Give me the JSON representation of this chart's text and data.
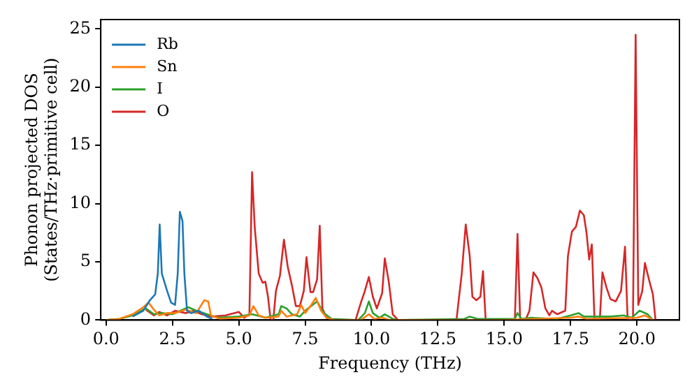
{
  "chart_data": {
    "type": "line",
    "xlabel": "Frequency (THz)",
    "ylabel": "Phonon projected DOS\n(States/THz·primitive cell)",
    "xlim": [
      -0.2,
      21.6
    ],
    "ylim": [
      0,
      25.8
    ],
    "xticks": [
      {
        "value": 0,
        "label": "0.0"
      },
      {
        "value": 2.5,
        "label": "2.5"
      },
      {
        "value": 5,
        "label": "5.0"
      },
      {
        "value": 7.5,
        "label": "7.5"
      },
      {
        "value": 10,
        "label": "10.0"
      },
      {
        "value": 12.5,
        "label": "12.5"
      },
      {
        "value": 15,
        "label": "15.0"
      },
      {
        "value": 17.5,
        "label": "17.5"
      },
      {
        "value": 20,
        "label": "20.0"
      }
    ],
    "yticks": [
      0,
      5,
      10,
      15,
      20,
      25
    ],
    "grid": false,
    "legend": "top left",
    "marker": "none",
    "line_style": "solid",
    "series": [
      {
        "name": "Rb",
        "color": "#1f77b4",
        "x": [
          1,
          1.4,
          1.65,
          1.85,
          1.95,
          2.02,
          2.1,
          2.3,
          2.45,
          2.6,
          2.7,
          2.78,
          2.88,
          2.95,
          3.05,
          3.2,
          3.5,
          3.8,
          4
        ],
        "values": [
          0.3,
          0.8,
          1.7,
          2.2,
          4,
          8.2,
          4,
          2.5,
          1.5,
          1.3,
          4,
          9.3,
          8.5,
          4,
          0.8,
          0.6,
          0.8,
          0.3,
          0.1
        ]
      },
      {
        "name": "Sn",
        "color": "#ff7f0e",
        "x": [
          0,
          0.5,
          1,
          1.4,
          1.6,
          1.8,
          2,
          2.3,
          2.6,
          3,
          3.4,
          3.7,
          3.85,
          3.95,
          4.3,
          5,
          5.4,
          5.55,
          5.75,
          6,
          6.5,
          6.6,
          6.8,
          7.2,
          7.35,
          7.5,
          7.7,
          7.9,
          8.1,
          8.3,
          8.6,
          9.6,
          9.9,
          10.1,
          10.4,
          10.7,
          15,
          17.5,
          17.8,
          18.1,
          20,
          20.3,
          20.6
        ],
        "values": [
          0,
          0.1,
          0.5,
          1.1,
          1.5,
          0.9,
          0.4,
          0.6,
          0.6,
          0.9,
          0.6,
          1.7,
          1.6,
          0.4,
          0.1,
          0.2,
          0.4,
          1.2,
          0.4,
          0.2,
          0.3,
          0.8,
          0.3,
          0.5,
          1.3,
          0.6,
          1.2,
          1.9,
          0.8,
          0.2,
          0,
          0,
          0.5,
          0.1,
          0.2,
          0,
          0,
          0.2,
          0.3,
          0.1,
          0.2,
          0.4,
          0
        ]
      },
      {
        "name": "I",
        "color": "#2ca02c",
        "x": [
          0,
          0.5,
          1,
          1.5,
          1.8,
          2.1,
          2.5,
          2.8,
          3.1,
          3.4,
          3.8,
          4.2,
          5,
          5.5,
          6,
          6.5,
          6.6,
          6.8,
          7,
          7.3,
          7.5,
          7.95,
          8.2,
          8.5,
          9.5,
          9.75,
          9.9,
          10.05,
          10.3,
          10.5,
          10.8,
          11,
          13.5,
          13.7,
          14,
          15.4,
          15.5,
          15.65,
          16,
          17,
          17.5,
          17.8,
          18,
          19,
          19.5,
          19.8,
          20.1,
          20.4,
          20.6
        ],
        "values": [
          0,
          0.1,
          0.4,
          1,
          0.5,
          0.6,
          0.5,
          0.8,
          1.1,
          0.8,
          0.5,
          0.2,
          0.3,
          0.5,
          0.2,
          0.5,
          1.2,
          1,
          0.5,
          0.3,
          0.8,
          1.6,
          0.6,
          0.1,
          0,
          0.6,
          1.6,
          0.6,
          0.2,
          0.5,
          0.1,
          0,
          0.1,
          0.3,
          0.1,
          0.1,
          0.6,
          0.1,
          0.2,
          0.1,
          0.4,
          0.6,
          0.3,
          0.3,
          0.4,
          0.2,
          0.8,
          0.5,
          0
        ]
      },
      {
        "name": "O",
        "color": "#d62728",
        "x": [
          1.5,
          1.8,
          2,
          2.3,
          2.6,
          3,
          3.3,
          3.6,
          4,
          4.5,
          5,
          5.2,
          5.4,
          5.5,
          5.6,
          5.75,
          5.9,
          6,
          6.1,
          6.2,
          6.3,
          6.4,
          6.55,
          6.7,
          6.85,
          7,
          7.15,
          7.3,
          7.45,
          7.55,
          7.7,
          7.8,
          7.95,
          8.05,
          8.15,
          8.3,
          8.6,
          9.4,
          9.6,
          9.75,
          9.9,
          10.05,
          10.2,
          10.4,
          10.5,
          10.65,
          10.8,
          11,
          13.2,
          13.4,
          13.55,
          13.7,
          13.8,
          13.95,
          14.1,
          14.2,
          14.3,
          15.4,
          15.5,
          15.6,
          15.8,
          15.95,
          16.1,
          16.25,
          16.4,
          16.55,
          16.7,
          16.8,
          17,
          17.3,
          17.4,
          17.55,
          17.7,
          17.85,
          18,
          18.1,
          18.2,
          18.3,
          18.4,
          18.6,
          18.7,
          18.85,
          19,
          19.2,
          19.4,
          19.55,
          19.65,
          19.85,
          19.95,
          20.05,
          20.2,
          20.3,
          20.45,
          20.6,
          20.7
        ],
        "values": [
          0.9,
          0.4,
          0.7,
          0.4,
          0.8,
          0.6,
          0.8,
          0.5,
          0.3,
          0.4,
          0.7,
          0.2,
          0.5,
          12.7,
          8,
          4,
          3.2,
          3.3,
          2,
          0,
          0,
          2.5,
          3.8,
          6.9,
          4.5,
          3,
          1.2,
          1.2,
          2.5,
          5.4,
          2.4,
          2.4,
          3.5,
          8.1,
          1,
          0.2,
          0,
          0,
          1.5,
          2.5,
          3.7,
          2,
          1,
          2.3,
          5.3,
          3.3,
          0.5,
          0,
          0,
          4,
          8.2,
          5.5,
          2,
          1.7,
          2,
          4.2,
          0,
          0,
          7.4,
          0,
          0,
          0.8,
          4.1,
          3.6,
          2.8,
          1,
          0.4,
          0.8,
          0.5,
          0.8,
          5.5,
          7.6,
          8,
          9.4,
          9,
          7.5,
          5.2,
          6.5,
          0,
          0,
          4.1,
          2.8,
          1.8,
          1.6,
          2.5,
          6.3,
          0,
          0,
          24.5,
          1.3,
          2.5,
          4.9,
          3.5,
          2.2,
          0
        ]
      }
    ]
  }
}
